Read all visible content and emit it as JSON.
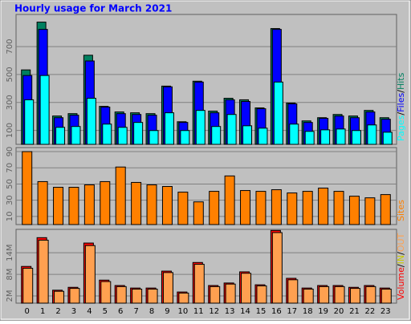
{
  "title": "Hourly usage for March 2021",
  "separator": "/",
  "chart_data": [
    {
      "type": "bar",
      "ylim": [
        0,
        930
      ],
      "yticks": [
        100,
        300,
        500,
        700
      ],
      "grid": true,
      "series": [
        {
          "name": "Hits",
          "color": "#008060",
          "values": [
            533,
            875,
            203,
            220,
            638,
            272,
            232,
            226,
            220,
            417,
            162,
            452,
            238,
            330,
            319,
            261,
            829,
            296,
            168,
            191,
            214,
            203,
            243,
            191
          ]
        },
        {
          "name": "Files",
          "color": "#0000ff",
          "values": [
            493,
            823,
            191,
            209,
            597,
            267,
            220,
            214,
            209,
            412,
            157,
            446,
            226,
            319,
            307,
            255,
            823,
            290,
            157,
            186,
            203,
            191,
            232,
            180
          ]
        },
        {
          "name": "Pages",
          "color": "#00ffff",
          "values": [
            319,
            493,
            122,
            128,
            330,
            145,
            122,
            157,
            99,
            226,
            99,
            243,
            128,
            214,
            133,
            116,
            446,
            145,
            93,
            104,
            110,
            99,
            139,
            87
          ]
        }
      ]
    },
    {
      "type": "bar",
      "ylim": [
        0,
        95
      ],
      "yticks": [
        10,
        30,
        50,
        70,
        90
      ],
      "grid": true,
      "series": [
        {
          "name": "Sites",
          "color": "#ff8000",
          "values": [
            90,
            53,
            46,
            46,
            49,
            53,
            71,
            52,
            49,
            47,
            40,
            28,
            41,
            60,
            42,
            41,
            43,
            39,
            41,
            45,
            41,
            35,
            33,
            37
          ]
        }
      ]
    },
    {
      "type": "bar",
      "ylim": [
        0,
        20500000
      ],
      "yticks": [
        {
          "value": 2000000,
          "label": "2M"
        },
        {
          "value": 8000000,
          "label": "8M"
        },
        {
          "value": 14000000,
          "label": "14M"
        }
      ],
      "grid": true,
      "categories": [
        "0",
        "1",
        "2",
        "3",
        "4",
        "5",
        "6",
        "7",
        "8",
        "9",
        "10",
        "11",
        "12",
        "13",
        "14",
        "15",
        "16",
        "17",
        "18",
        "19",
        "20",
        "21",
        "22",
        "23"
      ],
      "legend_only": [
        {
          "name": "IN",
          "color": "#c8c800"
        }
      ],
      "series": [
        {
          "name": "Volume",
          "color": "#ff0000",
          "values": [
            10200000,
            18200000,
            3600000,
            4400000,
            16700000,
            6400000,
            4900000,
            4200000,
            4200000,
            8900000,
            3100000,
            11300000,
            4900000,
            5600000,
            8700000,
            5100000,
            20200000,
            6900000,
            4200000,
            4900000,
            4900000,
            4400000,
            4900000,
            4200000
          ]
        },
        {
          "name": "OUT",
          "color": "#ffa050",
          "values": [
            9700000,
            17500000,
            3300000,
            4100000,
            16000000,
            6000000,
            4600000,
            3900000,
            3900000,
            8500000,
            2800000,
            10800000,
            4600000,
            5300000,
            8300000,
            4800000,
            19600000,
            6500000,
            3900000,
            4600000,
            4600000,
            4100000,
            4600000,
            3900000
          ]
        }
      ]
    }
  ]
}
